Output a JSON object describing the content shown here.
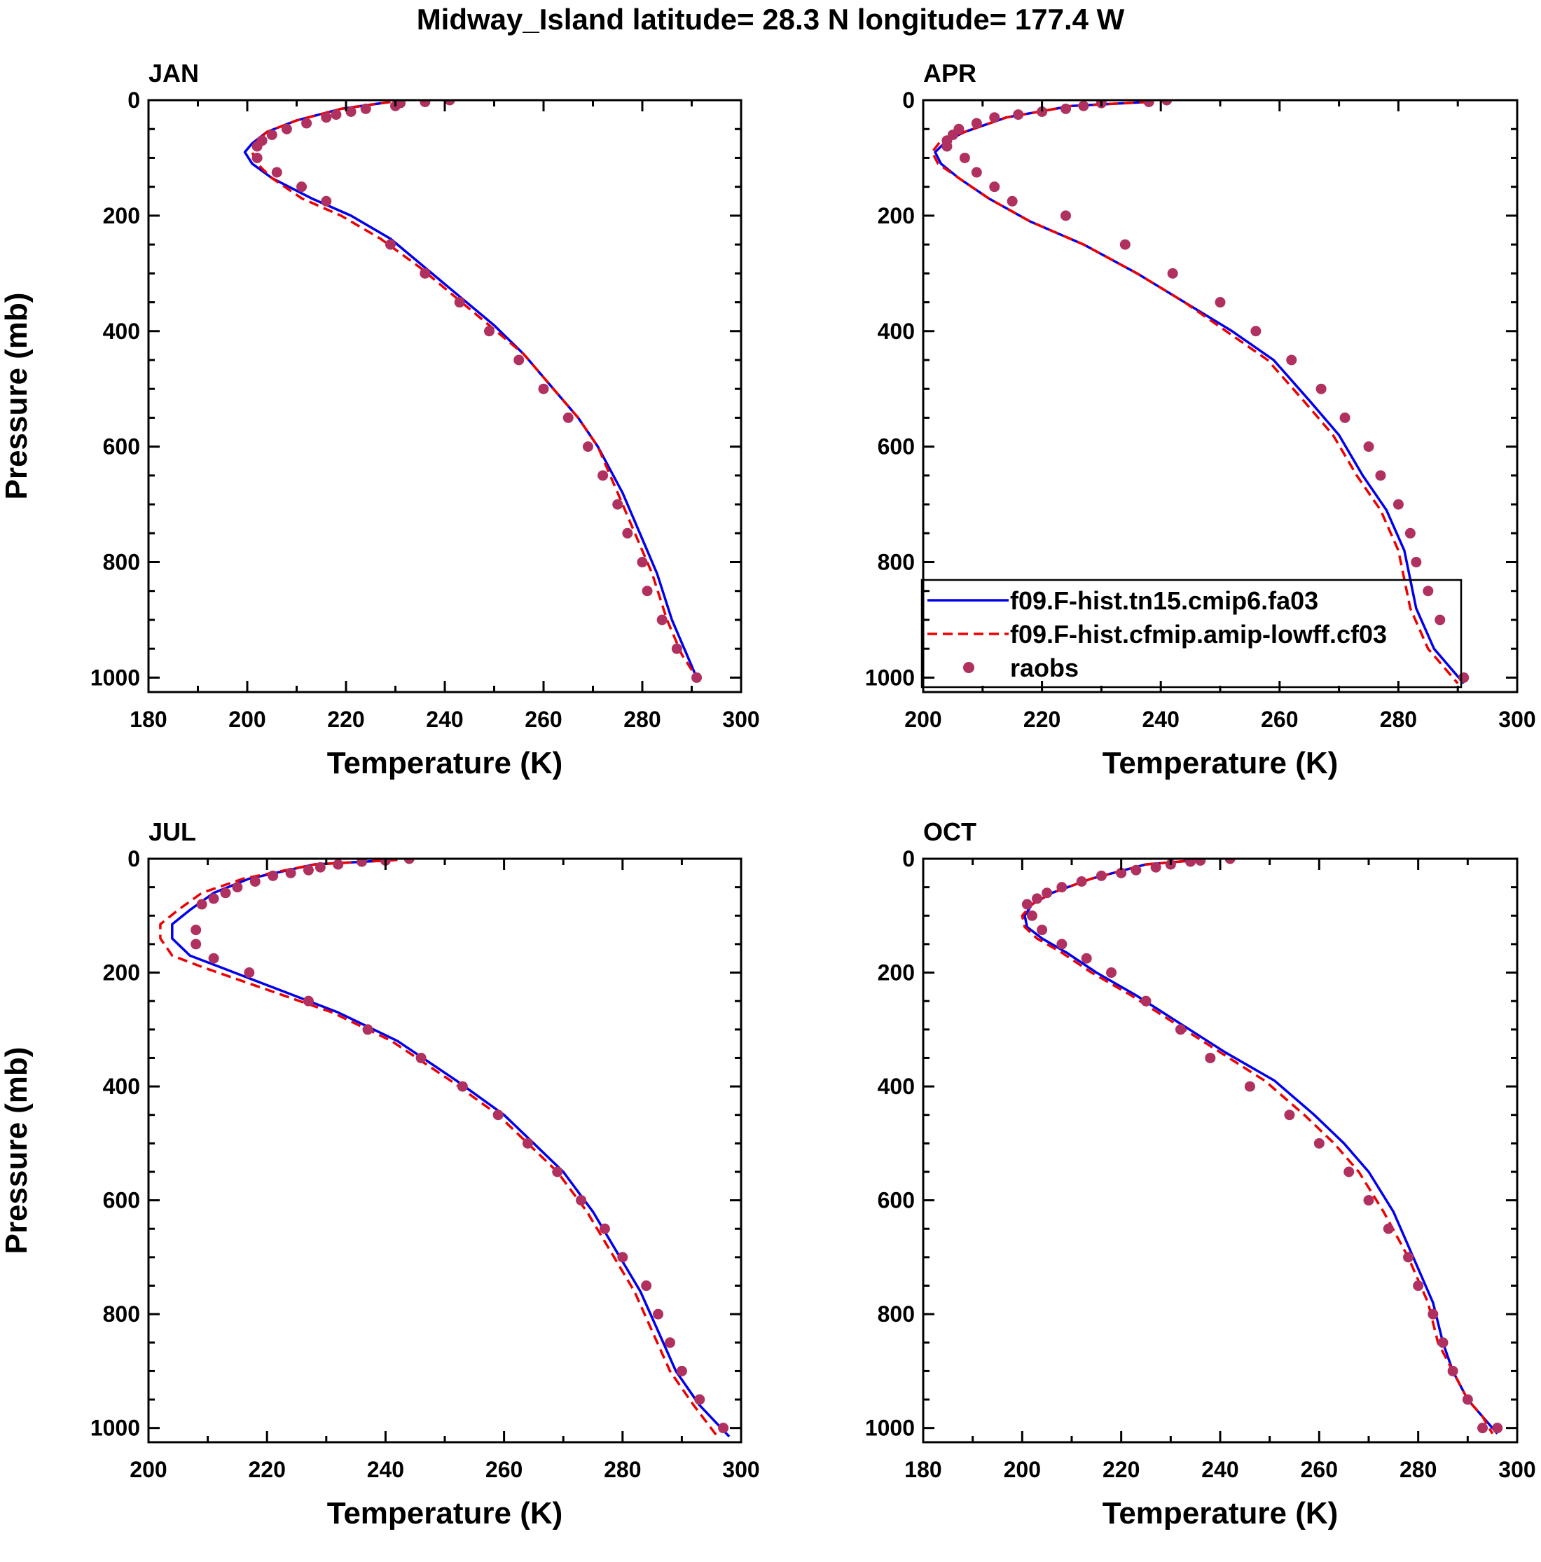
{
  "title": "Midway_Island  latitude= 28.3 N longitude= 177.4 W",
  "colors": {
    "model_a": "#0000ee",
    "model_b": "#ee0000",
    "obs": "#b03060",
    "axis": "#000000",
    "background": "#ffffff"
  },
  "legend": {
    "entries": [
      {
        "label": "f09.F-hist.tn15.cmip6.fa03",
        "style": "solid-line",
        "color": "#0000ee"
      },
      {
        "label": "f09.F-hist.cfmip.amip-lowff.cf03",
        "style": "dashed-line",
        "color": "#ee0000"
      },
      {
        "label": "raobs",
        "style": "dot",
        "color": "#b03060"
      }
    ]
  },
  "chart_data": [
    {
      "type": "line",
      "panel": "JAN",
      "title": "JAN",
      "xlabel": "Temperature (K)",
      "ylabel": "Pressure (mb)",
      "xlim": [
        180,
        300
      ],
      "ylim": [
        0,
        1025
      ],
      "y_inverted": true,
      "xticks": [
        180,
        200,
        220,
        240,
        260,
        280,
        300
      ],
      "yticks": [
        0,
        200,
        400,
        600,
        800,
        1000
      ],
      "series": [
        {
          "name": "f09.F-hist.tn15.cmip6.fa03",
          "style": "solid",
          "x": [
            229,
            219,
            210,
            204,
            201,
            199.5,
            201,
            205,
            213,
            221,
            229,
            236,
            243,
            250,
            256,
            262,
            267,
            271,
            276,
            280,
            283,
            286,
            289,
            291
          ],
          "y": [
            3,
            15,
            35,
            55,
            75,
            90,
            110,
            135,
            170,
            200,
            240,
            290,
            340,
            390,
            440,
            500,
            550,
            600,
            680,
            760,
            820,
            900,
            960,
            1000
          ]
        },
        {
          "name": "f09.F-hist.cfmip.amip-lowff.cf03",
          "style": "dashed",
          "x": [
            229,
            219,
            210,
            204,
            201.5,
            201,
            202,
            205,
            211,
            219,
            227,
            235,
            242,
            249,
            256,
            262,
            267,
            271,
            275,
            279,
            282,
            285,
            288,
            291
          ],
          "y": [
            3,
            15,
            35,
            55,
            75,
            90,
            110,
            135,
            170,
            200,
            240,
            290,
            340,
            390,
            440,
            500,
            550,
            600,
            680,
            760,
            820,
            900,
            960,
            1000
          ]
        },
        {
          "name": "raobs",
          "style": "dots",
          "x": [
            241,
            236,
            231,
            230,
            224,
            221,
            218,
            216,
            212,
            208,
            205,
            203,
            202,
            202,
            206,
            211,
            216,
            229,
            236,
            243,
            249,
            255,
            260,
            265,
            269,
            272,
            275,
            277,
            280,
            281,
            284,
            287,
            291
          ],
          "y": [
            0,
            3,
            5,
            10,
            15,
            20,
            25,
            30,
            40,
            50,
            60,
            70,
            80,
            100,
            125,
            150,
            175,
            250,
            300,
            350,
            400,
            450,
            500,
            550,
            600,
            650,
            700,
            750,
            800,
            850,
            900,
            950,
            1000
          ]
        }
      ]
    },
    {
      "type": "line",
      "panel": "APR",
      "title": "APR",
      "xlabel": "Temperature (K)",
      "ylabel": "",
      "xlim": [
        200,
        300
      ],
      "ylim": [
        0,
        1025
      ],
      "y_inverted": true,
      "xticks": [
        200,
        220,
        240,
        260,
        280,
        300
      ],
      "yticks": [
        0,
        200,
        400,
        600,
        800,
        1000
      ],
      "series": [
        {
          "name": "f09.F-hist.tn15.cmip6.fa03",
          "style": "solid",
          "x": [
            238,
            225,
            214,
            207,
            204,
            202,
            203,
            206,
            211,
            218,
            227,
            236,
            244,
            252,
            259,
            265,
            270,
            274,
            278,
            281,
            283,
            286,
            291
          ],
          "y": [
            3,
            10,
            30,
            55,
            70,
            90,
            110,
            135,
            170,
            210,
            250,
            300,
            350,
            400,
            450,
            520,
            580,
            650,
            710,
            780,
            880,
            950,
            1010
          ]
        },
        {
          "name": "f09.F-hist.cfmip.amip-lowff.cf03",
          "style": "dashed",
          "x": [
            238,
            225,
            214,
            207,
            203,
            201.5,
            202.5,
            206,
            211,
            218,
            227,
            236,
            244,
            251,
            258,
            264,
            269,
            273,
            277,
            280,
            282,
            285,
            290
          ],
          "y": [
            3,
            10,
            30,
            55,
            70,
            90,
            110,
            135,
            170,
            210,
            250,
            300,
            350,
            400,
            450,
            520,
            580,
            650,
            710,
            780,
            880,
            950,
            1010
          ]
        },
        {
          "name": "raobs",
          "style": "dots",
          "x": [
            241,
            238,
            230,
            227,
            224,
            220,
            216,
            212,
            209,
            206,
            205,
            204,
            204,
            207,
            209,
            212,
            215,
            224,
            234,
            242,
            250,
            256,
            262,
            267,
            271,
            275,
            277,
            280,
            282,
            283,
            285,
            287,
            291
          ],
          "y": [
            0,
            3,
            5,
            10,
            15,
            20,
            25,
            30,
            40,
            50,
            60,
            70,
            80,
            100,
            125,
            150,
            175,
            200,
            250,
            300,
            350,
            400,
            450,
            500,
            550,
            600,
            650,
            700,
            750,
            800,
            850,
            900,
            1000
          ]
        }
      ]
    },
    {
      "type": "line",
      "panel": "JUL",
      "title": "JUL",
      "xlabel": "Temperature (K)",
      "ylabel": "Pressure (mb)",
      "xlim": [
        200,
        300
      ],
      "ylim": [
        0,
        1025
      ],
      "y_inverted": true,
      "xticks": [
        200,
        220,
        240,
        260,
        280,
        300
      ],
      "yticks": [
        0,
        200,
        400,
        600,
        800,
        1000
      ],
      "series": [
        {
          "name": "f09.F-hist.tn15.cmip6.fa03",
          "style": "solid",
          "x": [
            242,
            228,
            217,
            211,
            207,
            204,
            204,
            207,
            212,
            222,
            232,
            242,
            252,
            260,
            265,
            270,
            275,
            279,
            283,
            286,
            289,
            293,
            298
          ],
          "y": [
            2,
            10,
            35,
            60,
            90,
            115,
            140,
            170,
            190,
            230,
            270,
            320,
            390,
            450,
            500,
            550,
            620,
            690,
            760,
            830,
            900,
            960,
            1015
          ]
        },
        {
          "name": "f09.F-hist.cfmip.amip-lowff.cf03",
          "style": "dashed",
          "x": [
            242,
            228,
            216,
            209,
            205,
            202,
            202,
            204,
            209,
            220,
            231,
            241,
            251,
            259,
            264,
            269,
            274,
            278,
            282,
            285,
            288,
            292,
            296
          ],
          "y": [
            2,
            10,
            35,
            60,
            90,
            115,
            140,
            170,
            190,
            230,
            270,
            320,
            390,
            450,
            500,
            550,
            620,
            690,
            760,
            830,
            900,
            960,
            1015
          ]
        },
        {
          "name": "raobs",
          "style": "dots",
          "x": [
            244,
            240,
            236,
            232,
            229,
            227,
            224,
            221,
            218,
            215,
            213,
            211,
            209,
            208,
            208,
            211,
            217,
            227,
            237,
            246,
            253,
            259,
            264,
            269,
            273,
            277,
            280,
            284,
            286,
            288,
            290,
            293,
            297
          ],
          "y": [
            0,
            3,
            5,
            10,
            15,
            20,
            25,
            30,
            40,
            50,
            60,
            70,
            80,
            125,
            150,
            175,
            200,
            250,
            300,
            350,
            400,
            450,
            500,
            550,
            600,
            650,
            700,
            750,
            800,
            850,
            900,
            950,
            1000
          ]
        }
      ]
    },
    {
      "type": "line",
      "panel": "OCT",
      "title": "OCT",
      "xlabel": "Temperature (K)",
      "ylabel": "",
      "xlim": [
        180,
        300
      ],
      "ylim": [
        0,
        1025
      ],
      "y_inverted": true,
      "xticks": [
        180,
        200,
        220,
        240,
        260,
        280,
        300
      ],
      "yticks": [
        0,
        200,
        400,
        600,
        800,
        1000
      ],
      "series": [
        {
          "name": "f09.F-hist.tn15.cmip6.fa03",
          "style": "solid",
          "x": [
            236,
            225,
            214,
            206,
            202,
            200.5,
            201,
            204,
            209,
            215,
            223,
            232,
            241,
            251,
            259,
            265,
            270,
            275,
            279,
            283,
            285,
            287,
            290,
            293,
            296
          ],
          "y": [
            2,
            10,
            35,
            60,
            80,
            100,
            120,
            140,
            165,
            200,
            240,
            290,
            340,
            390,
            450,
            500,
            550,
            620,
            700,
            780,
            850,
            900,
            950,
            980,
            1010
          ]
        },
        {
          "name": "f09.F-hist.cfmip.amip-lowff.cf03",
          "style": "dashed",
          "x": [
            236,
            225,
            214,
            206,
            202,
            200,
            200.5,
            203,
            208,
            214,
            222,
            231,
            240,
            249,
            257,
            263,
            268,
            273,
            278,
            282,
            284,
            287,
            290,
            293,
            295
          ],
          "y": [
            2,
            10,
            35,
            60,
            80,
            100,
            120,
            140,
            165,
            200,
            240,
            290,
            340,
            390,
            450,
            500,
            550,
            620,
            700,
            780,
            850,
            900,
            950,
            980,
            1010
          ]
        },
        {
          "name": "raobs",
          "style": "dots",
          "x": [
            242,
            236,
            234,
            230,
            227,
            223,
            220,
            216,
            212,
            208,
            205,
            203,
            201,
            202,
            204,
            208,
            213,
            218,
            225,
            232,
            238,
            246,
            254,
            260,
            266,
            270,
            274,
            278,
            280,
            283,
            285,
            287,
            290,
            293,
            296
          ],
          "y": [
            0,
            3,
            5,
            10,
            15,
            20,
            25,
            30,
            40,
            50,
            60,
            70,
            80,
            100,
            125,
            150,
            175,
            200,
            250,
            300,
            350,
            400,
            450,
            500,
            550,
            600,
            650,
            700,
            750,
            800,
            850,
            900,
            950,
            1000,
            1000
          ]
        }
      ]
    }
  ]
}
